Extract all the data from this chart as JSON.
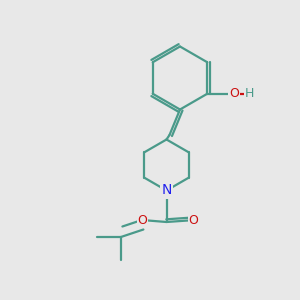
{
  "background_color": "#e8e8e8",
  "bond_color": "#4a9a8a",
  "atom_colors": {
    "N": "#2222ee",
    "O": "#cc1111",
    "H": "#4a9a8a",
    "C": "#4a9a8a"
  },
  "line_width": 1.6,
  "figsize": [
    3.0,
    3.0
  ],
  "dpi": 100
}
